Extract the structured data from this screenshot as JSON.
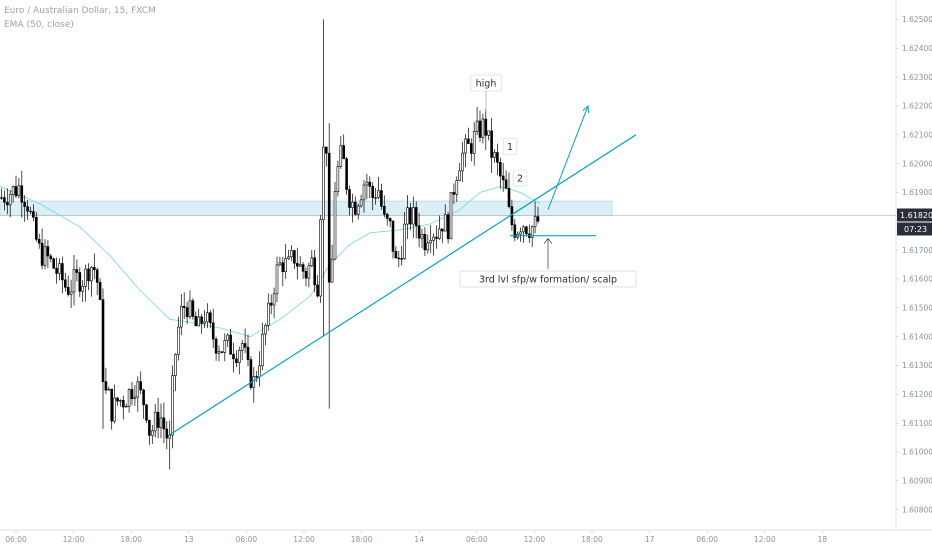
{
  "header": {
    "symbol_line": "Euro / Australian Dollar, 15, FXCM",
    "indicator_line": "EMA (50, close)"
  },
  "price_axis": {
    "labels": [
      "1.62500",
      "1.62400",
      "1.62300",
      "1.62200",
      "1.62100",
      "1.62000",
      "1.61900",
      "1.61700",
      "1.61600",
      "1.61500",
      "1.61400",
      "1.61300",
      "1.61200",
      "1.61100",
      "1.61000",
      "1.60900",
      "1.60800"
    ],
    "current_price": "1.61820",
    "countdown": "07:23"
  },
  "time_axis": {
    "labels": [
      "06:00",
      "12:00",
      "18:00",
      "13",
      "06:00",
      "12:00",
      "18:00",
      "14",
      "06:00",
      "12:00",
      "18:00",
      "17",
      "06:00",
      "12:00",
      "18"
    ]
  },
  "annotations": {
    "high_label": "high",
    "label_1": "1",
    "label_2": "2",
    "setup_label": "3rd lvl sfp/w formation/ scalp"
  },
  "colors": {
    "candle": "#000000",
    "accent": "#00a2c7",
    "ema": "#7fd9ea",
    "zone": "#cfe9f4",
    "price_tag": "#2a2e39"
  },
  "chart_data": {
    "type": "candlestick",
    "title": "Euro / Australian Dollar, 15, FXCM",
    "indicator": "EMA (50, close)",
    "ylim": [
      1.6075,
      1.6255
    ],
    "current_price": 1.6182,
    "x_labels": [
      "06:00",
      "12:00",
      "18:00",
      "13",
      "06:00",
      "12:00",
      "18:00",
      "14",
      "06:00",
      "12:00",
      "18:00",
      "17",
      "06:00",
      "12:00",
      "18"
    ],
    "close_path": [
      [
        0,
        1.6188
      ],
      [
        10,
        1.619
      ],
      [
        20,
        1.6192
      ],
      [
        28,
        1.6186
      ],
      [
        34,
        1.6176
      ],
      [
        40,
        1.6169
      ],
      [
        48,
        1.6167
      ],
      [
        56,
        1.6163
      ],
      [
        62,
        1.616
      ],
      [
        66,
        1.6157
      ],
      [
        70,
        1.6157
      ],
      [
        76,
        1.616
      ],
      [
        84,
        1.616
      ],
      [
        90,
        1.6165
      ],
      [
        96,
        1.6163
      ],
      [
        100,
        1.615
      ],
      [
        104,
        1.612
      ],
      [
        108,
        1.612
      ],
      [
        112,
        1.6114
      ],
      [
        118,
        1.6118
      ],
      [
        124,
        1.6118
      ],
      [
        130,
        1.6121
      ],
      [
        136,
        1.6124
      ],
      [
        140,
        1.612
      ],
      [
        146,
        1.6116
      ],
      [
        150,
        1.6106
      ],
      [
        155,
        1.611
      ],
      [
        160,
        1.6113
      ],
      [
        165,
        1.6107
      ],
      [
        170,
        1.6103
      ],
      [
        173,
        1.6125
      ],
      [
        177,
        1.614
      ],
      [
        181,
        1.6148
      ],
      [
        186,
        1.6152
      ],
      [
        192,
        1.6146
      ],
      [
        198,
        1.6142
      ],
      [
        204,
        1.6148
      ],
      [
        210,
        1.6142
      ],
      [
        216,
        1.6138
      ],
      [
        222,
        1.6136
      ],
      [
        228,
        1.6137
      ],
      [
        236,
        1.6135
      ],
      [
        242,
        1.6138
      ],
      [
        248,
        1.6128
      ],
      [
        254,
        1.6124
      ],
      [
        258,
        1.613
      ],
      [
        264,
        1.6141
      ],
      [
        270,
        1.615
      ],
      [
        276,
        1.6162
      ],
      [
        282,
        1.6166
      ],
      [
        288,
        1.6164
      ],
      [
        294,
        1.6168
      ],
      [
        300,
        1.6164
      ],
      [
        306,
        1.6162
      ],
      [
        312,
        1.6166
      ],
      [
        318,
        1.6158
      ],
      [
        322,
        1.62
      ],
      [
        326,
        1.6212
      ],
      [
        330,
        1.614
      ],
      [
        334,
        1.619
      ],
      [
        338,
        1.6198
      ],
      [
        342,
        1.6204
      ],
      [
        348,
        1.619
      ],
      [
        354,
        1.6185
      ],
      [
        360,
        1.619
      ],
      [
        366,
        1.6195
      ],
      [
        372,
        1.6188
      ],
      [
        378,
        1.6192
      ],
      [
        384,
        1.618
      ],
      [
        390,
        1.6178
      ],
      [
        396,
        1.6165
      ],
      [
        400,
        1.6168
      ],
      [
        406,
        1.618
      ],
      [
        412,
        1.6182
      ],
      [
        418,
        1.6178
      ],
      [
        424,
        1.6173
      ],
      [
        430,
        1.6178
      ],
      [
        436,
        1.6176
      ],
      [
        442,
        1.618
      ],
      [
        448,
        1.6178
      ],
      [
        452,
        1.6188
      ],
      [
        458,
        1.62
      ],
      [
        464,
        1.6204
      ],
      [
        470,
        1.6206
      ],
      [
        476,
        1.621
      ],
      [
        482,
        1.6213
      ],
      [
        486,
        1.6212
      ],
      [
        490,
        1.6205
      ],
      [
        494,
        1.6202
      ],
      [
        498,
        1.6198
      ],
      [
        502,
        1.6193
      ],
      [
        506,
        1.619
      ],
      [
        510,
        1.618
      ],
      [
        516,
        1.6177
      ],
      [
        522,
        1.618
      ],
      [
        528,
        1.6178
      ],
      [
        534,
        1.6178
      ],
      [
        538,
        1.618
      ]
    ],
    "ema_path": [
      [
        0,
        1.6192
      ],
      [
        40,
        1.6186
      ],
      [
        80,
        1.6178
      ],
      [
        110,
        1.6168
      ],
      [
        140,
        1.6156
      ],
      [
        170,
        1.6146
      ],
      [
        190,
        1.6145
      ],
      [
        220,
        1.6143
      ],
      [
        250,
        1.614
      ],
      [
        280,
        1.6146
      ],
      [
        310,
        1.6154
      ],
      [
        330,
        1.6165
      ],
      [
        350,
        1.6172
      ],
      [
        370,
        1.6176
      ],
      [
        400,
        1.6177
      ],
      [
        430,
        1.6179
      ],
      [
        460,
        1.6184
      ],
      [
        480,
        1.619
      ],
      [
        500,
        1.6192
      ],
      [
        520,
        1.619
      ],
      [
        540,
        1.6186
      ]
    ],
    "zone": {
      "x_start": 0,
      "x_end": 612,
      "low": 1.6182,
      "high": 1.6187
    },
    "trendline": {
      "points": [
        [
          170,
          1.6106
        ],
        [
          636,
          1.621
        ]
      ]
    },
    "level_line": {
      "x_start": 510,
      "x_end": 596,
      "price": 1.6175
    },
    "projection_arrow": {
      "points": [
        [
          548,
          1.6184
        ],
        [
          588,
          1.622
        ]
      ]
    },
    "annotations": [
      {
        "text": "high",
        "x": 486,
        "price": 1.6228,
        "target_price": 1.6218
      },
      {
        "text": "1",
        "x": 510,
        "price": 1.6206
      },
      {
        "text": "2",
        "x": 520,
        "price": 1.6195
      },
      {
        "text": "3rd lvl sfp/w formation/ scalp",
        "x": 548,
        "price": 1.616,
        "target_price": 1.6174
      }
    ]
  }
}
